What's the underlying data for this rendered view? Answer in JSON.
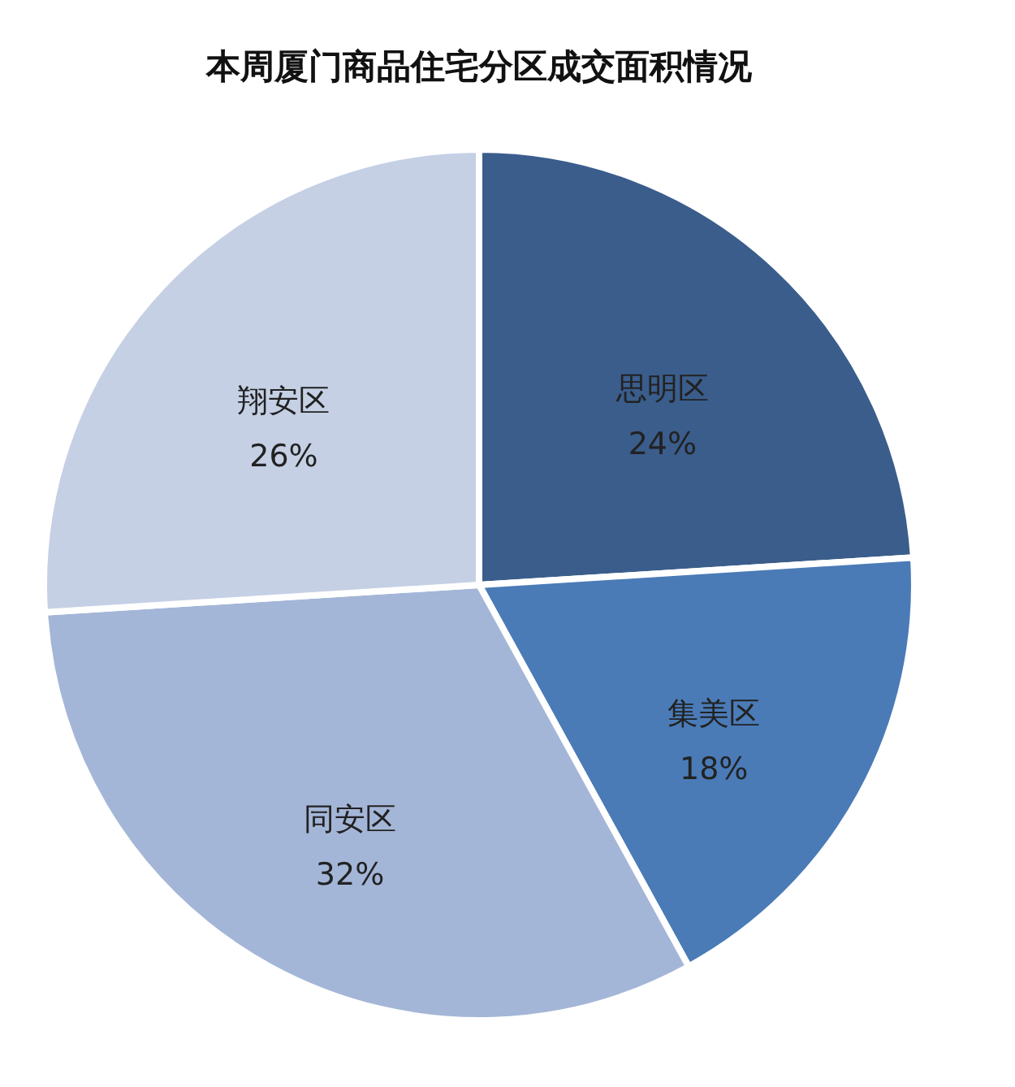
{
  "chart_data": {
    "type": "pie",
    "title": "本周厦门商品住宅分区成交面积情况",
    "categories": [
      "思明区",
      "集美区",
      "同安区",
      "翔安区"
    ],
    "values": [
      24,
      18,
      32,
      26
    ],
    "value_labels": [
      "24%",
      "18%",
      "32%",
      "26%"
    ],
    "colors": [
      "#3a5d8c",
      "#4a7bb7",
      "#a4b6d7",
      "#c5d0e5"
    ]
  }
}
